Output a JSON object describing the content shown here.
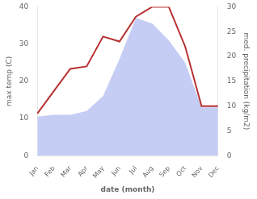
{
  "chart_data": {
    "type": "line",
    "xlabel": "date (month)",
    "ylabel": "max temp (C)",
    "y2label": "med. precipitation (kg/m2)",
    "categories": [
      "Jan",
      "Feb",
      "Mar",
      "Apr",
      "May",
      "Jun",
      "Jul",
      "Aug",
      "Sep",
      "Oct",
      "Nov",
      "Dec"
    ],
    "series": [
      {
        "type": "area",
        "color": "#c5cdf5",
        "values": [
          10.5,
          11.0,
          11.0,
          12.0,
          16.0,
          26.0,
          37.0,
          35.5,
          31.0,
          25.0,
          13.0,
          13.0
        ]
      },
      {
        "type": "line",
        "color": "#b83030",
        "axis": "y2",
        "values": [
          8.5,
          13.0,
          17.5,
          18.0,
          24.0,
          23.0,
          28.0,
          30.0,
          30.0,
          22.0,
          10.0,
          10.0
        ]
      }
    ],
    "ylim": [
      0,
      40
    ],
    "yticks": [
      0,
      10,
      20,
      30,
      40
    ],
    "y2lim": [
      0,
      30
    ],
    "y2ticks": [
      0,
      5,
      10,
      15,
      20,
      25,
      30
    ],
    "grid": false
  }
}
